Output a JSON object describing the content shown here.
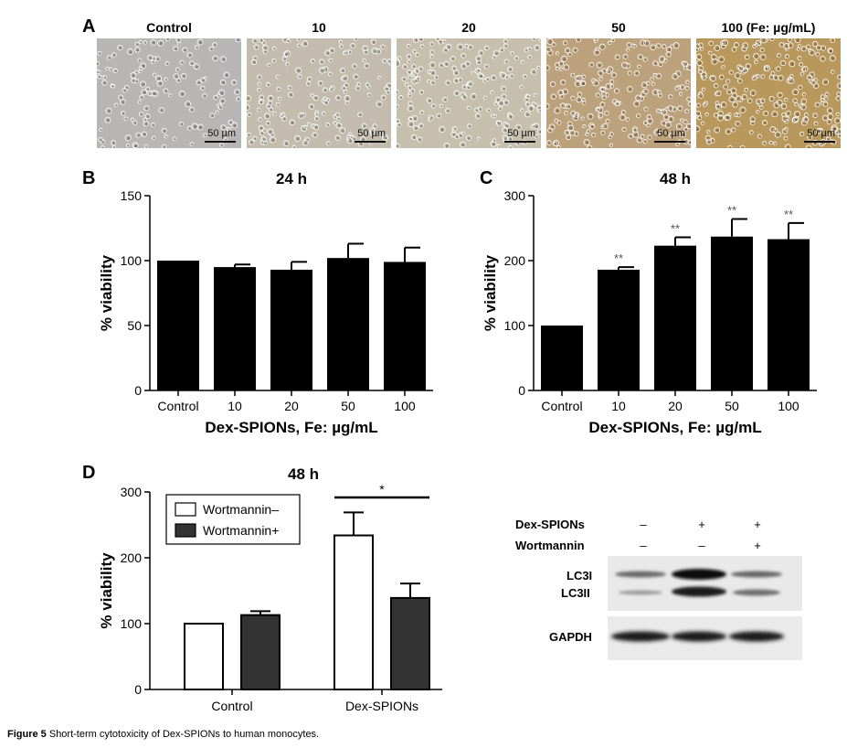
{
  "figure": {
    "caption_label": "Figure 5",
    "caption_text": " Short-term cytotoxicity of Dex-SPIONs to human monocytes."
  },
  "panel_a": {
    "letter": "A",
    "images": [
      {
        "label": "Control",
        "scale": "50 µm",
        "tint": "#b7b6b4"
      },
      {
        "label": "10",
        "scale": "50 µm",
        "tint": "#c3bcae"
      },
      {
        "label": "20",
        "scale": "50 µm",
        "tint": "#c6bfae"
      },
      {
        "label": "50",
        "scale": "50 µm",
        "tint": "#bca27c"
      },
      {
        "label": "100 (Fe: µg/mL)",
        "scale": "50 µm",
        "tint": "#b9985e"
      }
    ]
  },
  "chart_data": [
    {
      "panel": "B",
      "type": "bar",
      "title": "24 h",
      "xlabel": "Dex-SPIONs, Fe: µg/mL",
      "ylabel": "% viability",
      "categories": [
        "Control",
        "10",
        "20",
        "50",
        "100"
      ],
      "values": [
        100,
        95,
        93,
        102,
        99
      ],
      "errors": [
        0,
        2,
        6,
        11,
        11
      ],
      "annotations": [
        "",
        "",
        "",
        "",
        ""
      ],
      "yticks": [
        "0",
        "50",
        "100",
        "150"
      ],
      "ylim": [
        0,
        150
      ],
      "bar_color": "#000000"
    },
    {
      "panel": "C",
      "type": "bar",
      "title": "48 h",
      "xlabel": "Dex-SPIONs, Fe: µg/mL",
      "ylabel": "% viability",
      "categories": [
        "Control",
        "10",
        "20",
        "50",
        "100"
      ],
      "values": [
        100,
        186,
        223,
        237,
        233
      ],
      "errors": [
        0,
        4,
        13,
        27,
        25
      ],
      "annotations": [
        "",
        "**",
        "**",
        "**",
        "**"
      ],
      "yticks": [
        "0",
        "100",
        "200",
        "300"
      ],
      "ylim": [
        0,
        300
      ],
      "bar_color": "#000000"
    },
    {
      "panel": "D",
      "type": "bar",
      "title": "48 h",
      "xlabel": "",
      "ylabel": "% viability",
      "categories": [
        "Control",
        "Dex-SPIONs"
      ],
      "series": [
        {
          "name": "Wortmannin–",
          "values": [
            100,
            234
          ],
          "errors": [
            0,
            35
          ],
          "color": "#ffffff"
        },
        {
          "name": "Wortmannin+",
          "values": [
            113,
            139
          ],
          "errors": [
            6,
            22
          ],
          "color": "#333333"
        }
      ],
      "significance": "*",
      "yticks": [
        "0",
        "100",
        "200",
        "300"
      ],
      "ylim": [
        0,
        300
      ],
      "legend_position": "top-left"
    }
  ],
  "panel_letters": {
    "b": "B",
    "c": "C",
    "d": "D"
  },
  "western_blot": {
    "rows": [
      {
        "label": "Dex-SPIONs",
        "signs": [
          "–",
          "+",
          "+"
        ]
      },
      {
        "label": "Wortmannin",
        "signs": [
          "–",
          "–",
          "+"
        ]
      }
    ],
    "band_labels": {
      "lc3i": "LC3I",
      "lc3ii": "LC3II",
      "gapdh": "GAPDH"
    }
  }
}
